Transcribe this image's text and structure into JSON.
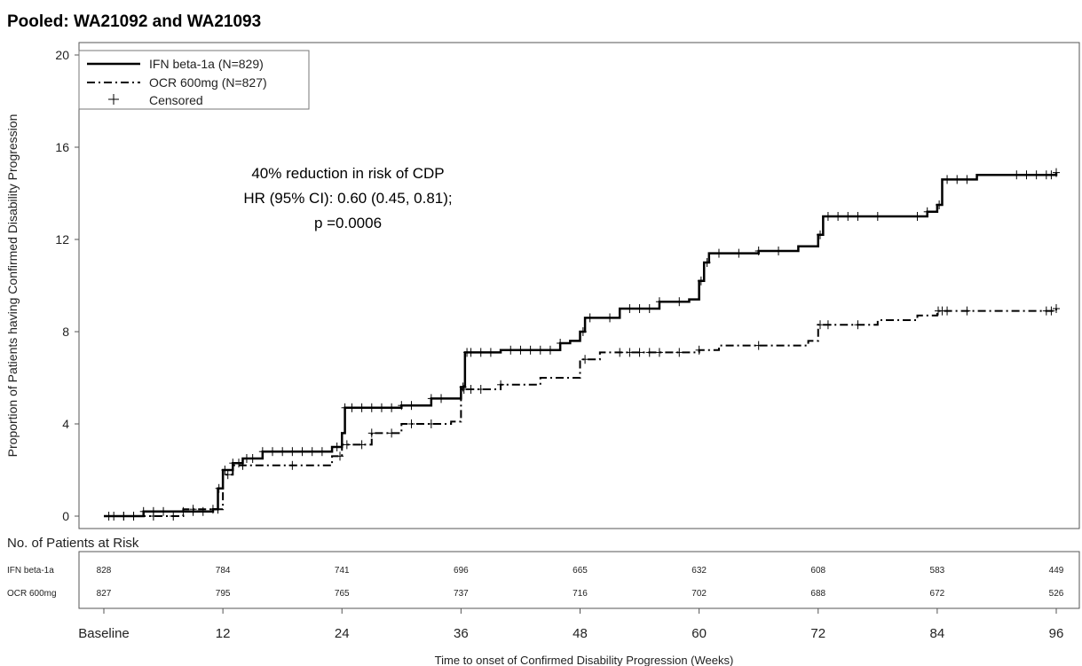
{
  "chart_data": {
    "type": "line",
    "title": "Pooled: WA21092 and WA21093",
    "xlabel": "Time to onset of Confirmed Disability Progression (Weeks)",
    "ylabel": "Proportion of Patients having Confirmed Disability Progression",
    "xlim": [
      0,
      96
    ],
    "ylim": [
      0,
      20
    ],
    "x_ticks": [
      0,
      12,
      24,
      36,
      48,
      60,
      72,
      84,
      96
    ],
    "x_tick_labels": [
      "Baseline",
      "12",
      "24",
      "36",
      "48",
      "60",
      "72",
      "84",
      "96"
    ],
    "y_ticks": [
      0,
      4,
      8,
      12,
      16,
      20
    ],
    "y_tick_labels": [
      "0",
      "4",
      "8",
      "12",
      "16",
      "20"
    ],
    "legend_position": "top-left",
    "censored_label": "Censored",
    "annotation": [
      "40% reduction in risk of CDP",
      "HR (95% CI): 0.60 (0.45, 0.81);",
      "p =0.0006"
    ],
    "series": [
      {
        "name": "IFN beta-1a (N=829)",
        "style": "solid",
        "x": [
          0,
          4,
          11,
          11.5,
          12,
          13,
          14,
          16,
          22,
          23,
          24,
          24.3,
          26,
          30,
          33,
          36,
          36.4,
          40,
          46,
          47,
          48,
          48.5,
          52,
          56,
          59,
          60,
          60.5,
          61,
          66,
          70,
          71,
          72,
          72.5,
          82,
          83,
          84,
          84.5,
          88,
          96
        ],
        "y": [
          0,
          0.2,
          0.3,
          1.2,
          2.0,
          2.3,
          2.5,
          2.8,
          2.8,
          3.0,
          3.6,
          4.7,
          4.7,
          4.8,
          5.1,
          5.6,
          7.1,
          7.2,
          7.5,
          7.6,
          8.0,
          8.6,
          9.0,
          9.3,
          9.4,
          10.2,
          11.0,
          11.4,
          11.5,
          11.7,
          11.7,
          12.2,
          13.0,
          13.0,
          13.2,
          13.5,
          14.6,
          14.8,
          14.9
        ]
      },
      {
        "name": "OCR 600mg (N=827)",
        "style": "dashdot",
        "x": [
          0,
          8,
          11,
          12,
          13,
          16,
          22,
          23,
          24,
          27,
          30,
          35,
          36,
          40,
          44,
          47,
          48,
          50,
          58,
          60,
          62,
          70,
          71,
          72,
          78,
          82,
          84,
          96
        ],
        "y": [
          0,
          0.3,
          0.3,
          1.8,
          2.2,
          2.2,
          2.2,
          2.6,
          3.1,
          3.6,
          4.0,
          4.1,
          5.5,
          5.7,
          6.0,
          6.0,
          6.8,
          7.1,
          7.1,
          7.2,
          7.4,
          7.4,
          7.6,
          8.3,
          8.5,
          8.7,
          8.9,
          9.0
        ]
      }
    ],
    "censored": [
      {
        "series": 0,
        "x": [
          1,
          2,
          3,
          4,
          5,
          6,
          8,
          9,
          10,
          11,
          11.6,
          12.2,
          13,
          13.6,
          14.4,
          15,
          16,
          17,
          18,
          19,
          20,
          21,
          22,
          23.5,
          24.3,
          25,
          26,
          27,
          28,
          29,
          30,
          31,
          33,
          34,
          36.2,
          36.6,
          37,
          38,
          39,
          41,
          42,
          43,
          44,
          45,
          46,
          48.3,
          49,
          51,
          53,
          54,
          55,
          56,
          58,
          60.2,
          60.8,
          62,
          64,
          66,
          68,
          72.2,
          73,
          74,
          75,
          76,
          78,
          82,
          83,
          84.2,
          85,
          86,
          87,
          92,
          93,
          94,
          95,
          95.5,
          96
        ]
      },
      {
        "series": 1,
        "x": [
          0.5,
          2,
          3,
          5,
          7,
          9,
          11.5,
          12.5,
          14,
          19,
          23.8,
          24.5,
          26,
          27,
          29,
          31,
          33,
          36.3,
          37,
          38,
          40,
          48.5,
          52,
          53,
          54,
          55,
          56,
          58,
          60,
          66,
          72.2,
          73,
          76,
          84.1,
          84.5,
          85,
          87,
          95,
          95.5,
          96
        ]
      }
    ],
    "risk_table": {
      "title": "No. of Patients at Risk",
      "rows": [
        {
          "label": "IFN beta-1a",
          "values": [
            "828",
            "784",
            "741",
            "696",
            "665",
            "632",
            "608",
            "583",
            "449"
          ]
        },
        {
          "label": "OCR 600mg",
          "values": [
            "827",
            "795",
            "765",
            "737",
            "716",
            "702",
            "688",
            "672",
            "526"
          ]
        }
      ]
    }
  }
}
